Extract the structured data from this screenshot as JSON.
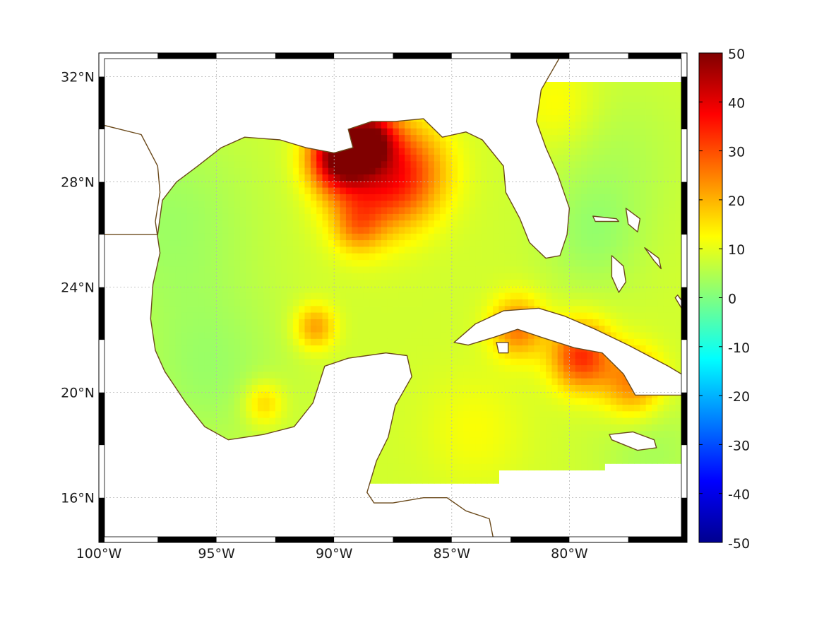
{
  "map": {
    "lon_min": -100,
    "lon_max": -75,
    "lat_min": 14.3,
    "lat_max": 32.9,
    "grid": true,
    "lon_ticks": [
      {
        "value": -100,
        "label": "100°W"
      },
      {
        "value": -95,
        "label": "95°W"
      },
      {
        "value": -90,
        "label": "90°W"
      },
      {
        "value": -85,
        "label": "85°W"
      },
      {
        "value": -80,
        "label": "80°W"
      }
    ],
    "lat_ticks": [
      {
        "value": 32,
        "label": "32°N"
      },
      {
        "value": 28,
        "label": "28°N"
      },
      {
        "value": 24,
        "label": "24°N"
      },
      {
        "value": 20,
        "label": "20°N"
      },
      {
        "value": 16,
        "label": "16°N"
      }
    ],
    "coastline_color": "#6b4a1c",
    "frame_colors": [
      "#000000",
      "#ffffff"
    ]
  },
  "colorbar": {
    "min": -50,
    "max": 50,
    "colormap": "jet",
    "tick_labels": [
      "50",
      "40",
      "30",
      "20",
      "10",
      "0",
      "-10",
      "-20",
      "-30",
      "-40",
      "-50"
    ],
    "tick_values": [
      50,
      40,
      30,
      20,
      10,
      0,
      -10,
      -20,
      -30,
      -40,
      -50
    ]
  },
  "field": {
    "background_value": 8,
    "blobs": [
      {
        "lon": -89.8,
        "lat": 29.0,
        "value": 48,
        "r": 0.9
      },
      {
        "lon": -88.5,
        "lat": 29.7,
        "value": 40,
        "r": 0.8
      },
      {
        "lon": -87.0,
        "lat": 28.4,
        "value": 30,
        "r": 1.3
      },
      {
        "lon": -88.6,
        "lat": 27.5,
        "value": 22,
        "r": 1.3
      },
      {
        "lon": -89.0,
        "lat": 26.3,
        "value": 18,
        "r": 0.7
      },
      {
        "lon": -97.0,
        "lat": 26.5,
        "value": 3,
        "r": 2.6
      },
      {
        "lon": -95.3,
        "lat": 20.8,
        "value": 3,
        "r": 2.2
      },
      {
        "lon": -90.8,
        "lat": 22.5,
        "value": 22,
        "r": 0.6
      },
      {
        "lon": -79.5,
        "lat": 21.4,
        "value": 33,
        "r": 0.9
      },
      {
        "lon": -82.2,
        "lat": 22.5,
        "value": 26,
        "r": 0.8
      },
      {
        "lon": -77.3,
        "lat": 20.4,
        "value": 25,
        "r": 0.9
      },
      {
        "lon": -79.0,
        "lat": 26.0,
        "value": 3,
        "r": 1.5
      },
      {
        "lon": -78.0,
        "lat": 29.0,
        "value": 5,
        "r": 2.0
      },
      {
        "lon": -80.5,
        "lat": 31.0,
        "value": 13,
        "r": 1.2
      },
      {
        "lon": -76.5,
        "lat": 17.8,
        "value": 4,
        "r": 1.5
      },
      {
        "lon": -93.0,
        "lat": 19.6,
        "value": 18,
        "r": 0.6
      },
      {
        "lon": -84.0,
        "lat": 18.6,
        "value": 12,
        "r": 1.5
      }
    ]
  }
}
